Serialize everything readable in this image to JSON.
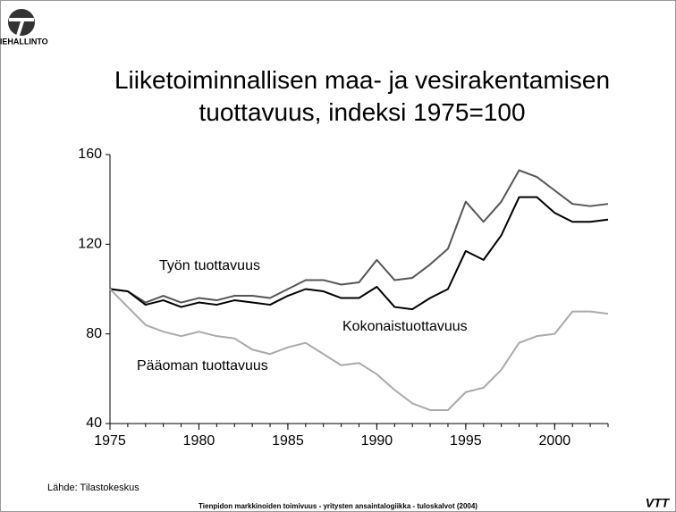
{
  "logo_text": "TIEHALLINTO",
  "chart_data": {
    "type": "line",
    "title": "Liiketoiminnallisen maa- ja vesirakentamisen tuottavuus, indeksi 1975=100",
    "x": [
      1975,
      1976,
      1977,
      1978,
      1979,
      1980,
      1981,
      1982,
      1983,
      1984,
      1985,
      1986,
      1987,
      1988,
      1989,
      1990,
      1991,
      1992,
      1993,
      1994,
      1995,
      1996,
      1997,
      1998,
      1999,
      2000,
      2001,
      2002,
      2003
    ],
    "series": [
      {
        "name": "Työn tuottavuus",
        "color": "#555555",
        "values": [
          100,
          99,
          94,
          97,
          94,
          96,
          95,
          97,
          97,
          96,
          100,
          104,
          104,
          102,
          103,
          113,
          104,
          105,
          111,
          118,
          139,
          130,
          139,
          153,
          150,
          144,
          138,
          137,
          138
        ]
      },
      {
        "name": "Kokonaistuottavuus",
        "color": "#000000",
        "values": [
          100,
          99,
          93,
          95,
          92,
          94,
          93,
          95,
          94,
          93,
          97,
          100,
          99,
          96,
          96,
          101,
          92,
          91,
          96,
          100,
          117,
          113,
          124,
          141,
          141,
          134,
          130,
          130,
          131
        ]
      },
      {
        "name": "Pääoman tuottavuus",
        "color": "#aaaaaa",
        "values": [
          100,
          92,
          84,
          81,
          79,
          81,
          79,
          78,
          73,
          71,
          74,
          76,
          71,
          66,
          67,
          62,
          55,
          49,
          46,
          46,
          54,
          56,
          64,
          76,
          79,
          80,
          90,
          90,
          89
        ]
      }
    ],
    "xlim": [
      1975,
      2003
    ],
    "xticks": [
      1975,
      1980,
      1985,
      1990,
      1995,
      2000
    ],
    "ylim": [
      40,
      160
    ],
    "yticks": [
      40,
      80,
      120,
      160
    ]
  },
  "source": "Lähde: Tilastokeskus",
  "footer": "Tienpidon markkinoiden toimivuus - yritysten ansaintalogiikka - tuloskalvot (2004)",
  "corner_logo": "VTT"
}
